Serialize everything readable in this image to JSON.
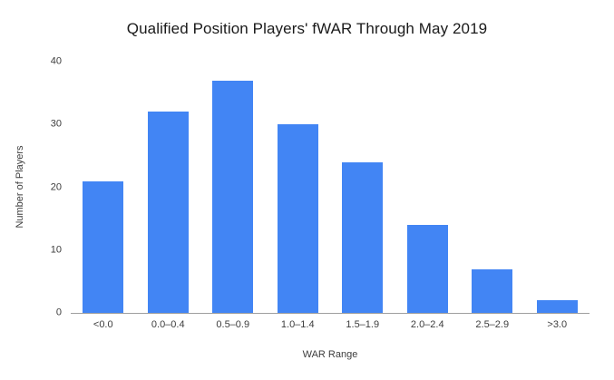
{
  "chart_data": {
    "type": "bar",
    "title": "Qualified Position Players' fWAR Through May 2019",
    "xlabel": "WAR Range",
    "ylabel": "Number of Players",
    "categories": [
      "<0.0",
      "0.0–0.4",
      "0.5–0.9",
      "1.0–1.4",
      "1.5–1.9",
      "2.0–2.4",
      "2.5–2.9",
      ">3.0"
    ],
    "values": [
      21,
      32,
      37,
      30,
      24,
      14,
      7,
      2
    ],
    "ylim": [
      0,
      40
    ],
    "yticks": [
      0,
      10,
      20,
      30,
      40
    ],
    "bar_color": "#4285f4",
    "grid": false,
    "legend": "none",
    "background_color": "#ffffff"
  }
}
